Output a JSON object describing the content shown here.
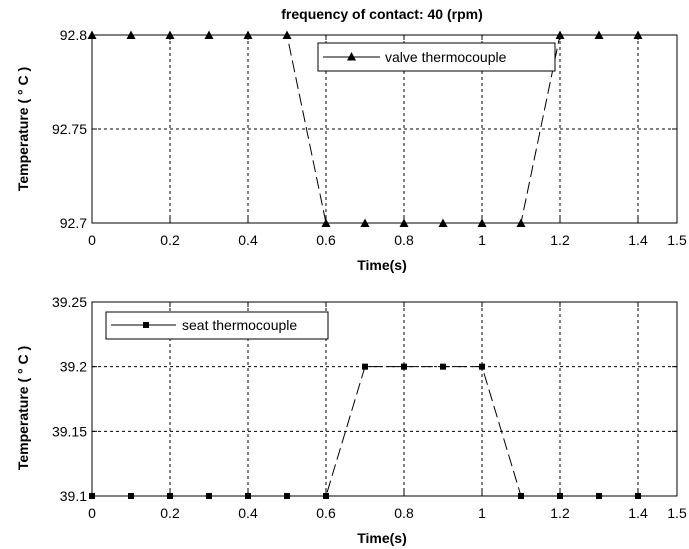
{
  "chart_data": [
    {
      "type": "line",
      "title": "frequency of contact: 40 (rpm)",
      "xlabel": "Time(s)",
      "ylabel": "Temperature ( ° C )",
      "xlim": [
        0,
        1.5
      ],
      "ylim": [
        92.7,
        92.8
      ],
      "xticks": [
        0,
        0.2,
        0.4,
        0.6,
        0.8,
        1,
        1.2,
        1.4
      ],
      "xtick_labels": [
        "0",
        "0.2",
        "0.4",
        "0.6",
        "0.8",
        "1",
        "1.2",
        "1.4"
      ],
      "xticks_extra_label": "1.5",
      "yticks": [
        92.7,
        92.75,
        92.8
      ],
      "ytick_labels": [
        "92.7",
        "92.75",
        "92.8"
      ],
      "grid": true,
      "legend_position": "top-right",
      "series": [
        {
          "name": "valve thermocouple",
          "marker": "triangle",
          "line_style": "dashed",
          "color": "#000000",
          "x": [
            0,
            0.1,
            0.2,
            0.3,
            0.4,
            0.5,
            0.6,
            0.7,
            0.8,
            0.9,
            1.0,
            1.1,
            1.2,
            1.3,
            1.4
          ],
          "y": [
            92.8,
            92.8,
            92.8,
            92.8,
            92.8,
            92.8,
            92.7,
            92.7,
            92.7,
            92.7,
            92.7,
            92.7,
            92.8,
            92.8,
            92.8
          ]
        }
      ]
    },
    {
      "type": "line",
      "title": "",
      "xlabel": "Time(s)",
      "ylabel": "Temperature ( ° C )",
      "xlim": [
        0,
        1.5
      ],
      "ylim": [
        39.1,
        39.25
      ],
      "xticks": [
        0,
        0.2,
        0.4,
        0.6,
        0.8,
        1,
        1.2,
        1.4
      ],
      "xtick_labels": [
        "0",
        "0.2",
        "0.4",
        "0.6",
        "0.8",
        "1",
        "1.2",
        "1.4"
      ],
      "xticks_extra_label": "1.5",
      "yticks": [
        39.1,
        39.15,
        39.2,
        39.25
      ],
      "ytick_labels": [
        "39.1",
        "39.15",
        "39.2",
        "39.25"
      ],
      "grid": true,
      "legend_position": "top-left",
      "series": [
        {
          "name": "seat thermocouple",
          "marker": "square",
          "line_style": "dashed",
          "color": "#000000",
          "x": [
            0,
            0.1,
            0.2,
            0.3,
            0.4,
            0.5,
            0.6,
            0.7,
            0.8,
            0.9,
            1.0,
            1.1,
            1.2,
            1.3,
            1.4
          ],
          "y": [
            39.1,
            39.1,
            39.1,
            39.1,
            39.1,
            39.1,
            39.1,
            39.2,
            39.2,
            39.2,
            39.2,
            39.1,
            39.1,
            39.1,
            39.1
          ]
        }
      ]
    }
  ]
}
